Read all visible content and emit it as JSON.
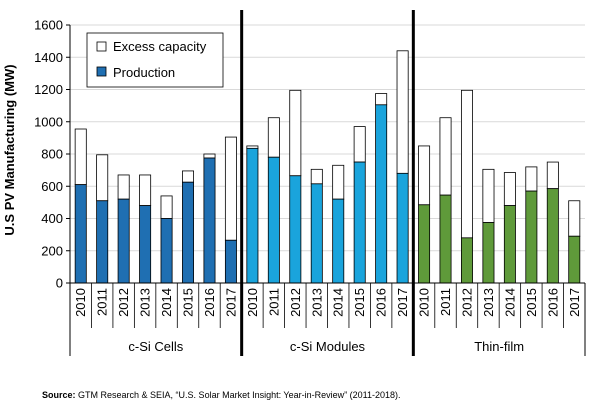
{
  "chart_data": {
    "type": "bar",
    "subtype": "stacked",
    "ylabel": "U.S PV Manufacturing (MW)",
    "ylim": [
      0,
      1600
    ],
    "yticks": [
      0,
      200,
      400,
      600,
      800,
      1000,
      1200,
      1400,
      1600
    ],
    "legend": {
      "placement": "top-left",
      "entries": [
        "Excess capacity",
        "Production"
      ]
    },
    "groups": [
      {
        "name": "c-Si Cells",
        "color": "#1f6fb2",
        "categories": [
          "2010",
          "2011",
          "2012",
          "2013",
          "2014",
          "2015",
          "2016",
          "2017"
        ],
        "production": [
          610,
          510,
          520,
          480,
          400,
          625,
          775,
          265
        ],
        "capacity": [
          955,
          795,
          670,
          670,
          540,
          695,
          800,
          905
        ]
      },
      {
        "name": "c-Si Modules",
        "color": "#1aa4dc",
        "categories": [
          "2010",
          "2011",
          "2012",
          "2013",
          "2014",
          "2015",
          "2016",
          "2017"
        ],
        "production": [
          835,
          780,
          665,
          615,
          520,
          750,
          1105,
          680
        ],
        "capacity": [
          850,
          1025,
          1195,
          705,
          730,
          970,
          1175,
          1440
        ]
      },
      {
        "name": "Thin-film",
        "color": "#5f9a3a",
        "categories": [
          "2010",
          "2011",
          "2012",
          "2013",
          "2014",
          "2015",
          "2016",
          "2017"
        ],
        "production": [
          485,
          545,
          280,
          375,
          480,
          570,
          585,
          290
        ],
        "capacity": [
          850,
          1025,
          1195,
          705,
          685,
          720,
          750,
          510
        ]
      }
    ]
  },
  "source": {
    "label": "Source:",
    "text": "GTM Research & SEIA, “U.S. Solar Market Insight: Year-in-Review” (2011-2018)."
  }
}
